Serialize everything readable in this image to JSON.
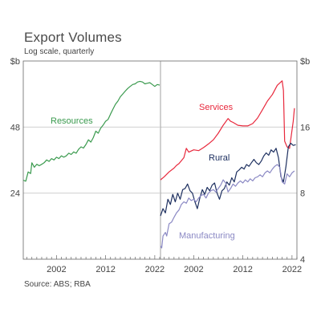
{
  "title": "Export Volumes",
  "subtitle": "Log scale, quarterly",
  "source": "Source: ABS; RBA",
  "chart_data": [
    {
      "type": "line",
      "panel": "left",
      "yscale": "log",
      "ylabel": "$b",
      "yticks": [
        24,
        48
      ],
      "ylim": [
        12,
        96
      ],
      "xlim": [
        1995.25,
        2023.0
      ],
      "xticks": [
        2002,
        2012,
        2022
      ],
      "series": [
        {
          "name": "Resources",
          "color": "#3a9a4e",
          "points": [
            [
              1995.25,
              27.5
            ],
            [
              1995.75,
              27.2
            ],
            [
              1996.25,
              30.0
            ],
            [
              1996.75,
              29.5
            ],
            [
              1997.0,
              33.0
            ],
            [
              1997.5,
              31.5
            ],
            [
              1998.0,
              32.5
            ],
            [
              1998.5,
              32.0
            ],
            [
              1999.0,
              32.5
            ],
            [
              1999.5,
              33.0
            ],
            [
              2000.0,
              34.0
            ],
            [
              2000.5,
              33.5
            ],
            [
              2001.0,
              34.5
            ],
            [
              2001.5,
              34.0
            ],
            [
              2002.0,
              35.0
            ],
            [
              2002.5,
              34.5
            ],
            [
              2003.0,
              35.5
            ],
            [
              2003.5,
              35.0
            ],
            [
              2004.0,
              35.5
            ],
            [
              2004.5,
              36.5
            ],
            [
              2005.0,
              36.0
            ],
            [
              2005.5,
              37.0
            ],
            [
              2006.0,
              36.5
            ],
            [
              2006.5,
              38.0
            ],
            [
              2007.0,
              39.0
            ],
            [
              2007.5,
              38.5
            ],
            [
              2008.0,
              40.0
            ],
            [
              2008.5,
              42.0
            ],
            [
              2009.0,
              41.0
            ],
            [
              2009.5,
              43.0
            ],
            [
              2010.0,
              46.0
            ],
            [
              2010.5,
              45.0
            ],
            [
              2011.0,
              47.5
            ],
            [
              2011.5,
              49.0
            ],
            [
              2012.0,
              51.0
            ],
            [
              2012.5,
              52.0
            ],
            [
              2013.0,
              55.0
            ],
            [
              2013.5,
              58.0
            ],
            [
              2014.0,
              61.0
            ],
            [
              2014.5,
              63.0
            ],
            [
              2015.0,
              66.0
            ],
            [
              2015.5,
              68.0
            ],
            [
              2016.0,
              70.0
            ],
            [
              2016.5,
              72.0
            ],
            [
              2017.0,
              73.5
            ],
            [
              2017.5,
              75.0
            ],
            [
              2018.0,
              75.5
            ],
            [
              2018.5,
              77.0
            ],
            [
              2019.0,
              77.5
            ],
            [
              2019.5,
              77.0
            ],
            [
              2020.0,
              75.5
            ],
            [
              2020.5,
              76.0
            ],
            [
              2021.0,
              76.5
            ],
            [
              2021.5,
              75.0
            ],
            [
              2022.0,
              73.5
            ],
            [
              2022.5,
              75.0
            ],
            [
              2023.0,
              74.5
            ]
          ]
        }
      ]
    },
    {
      "type": "line",
      "panel": "right",
      "yscale": "log",
      "ylabel": "$b",
      "yticks": [
        4,
        8,
        16
      ],
      "ylim": [
        4,
        32
      ],
      "xlim": [
        1995.25,
        2023.0
      ],
      "xticks": [
        2002,
        2012,
        2022
      ],
      "series": [
        {
          "name": "Services",
          "color": "#e8283c",
          "points": [
            [
              1995.25,
              9.2
            ],
            [
              1996.0,
              9.5
            ],
            [
              1997.0,
              10.0
            ],
            [
              1998.0,
              10.4
            ],
            [
              1998.5,
              10.7
            ],
            [
              1999.0,
              10.9
            ],
            [
              2000.0,
              11.6
            ],
            [
              2000.5,
              12.8
            ],
            [
              2001.0,
              12.3
            ],
            [
              2002.0,
              12.6
            ],
            [
              2003.0,
              12.5
            ],
            [
              2004.0,
              12.9
            ],
            [
              2005.0,
              13.4
            ],
            [
              2006.0,
              14.0
            ],
            [
              2007.0,
              15.0
            ],
            [
              2008.0,
              16.3
            ],
            [
              2009.0,
              17.5
            ],
            [
              2009.5,
              17.0
            ],
            [
              2010.0,
              16.8
            ],
            [
              2011.0,
              16.3
            ],
            [
              2012.0,
              16.2
            ],
            [
              2013.0,
              16.2
            ],
            [
              2014.0,
              16.6
            ],
            [
              2015.0,
              17.6
            ],
            [
              2016.0,
              19.2
            ],
            [
              2017.0,
              21.0
            ],
            [
              2018.0,
              22.5
            ],
            [
              2019.0,
              24.8
            ],
            [
              2020.0,
              26.0
            ],
            [
              2020.25,
              23.5
            ],
            [
              2020.5,
              13.8
            ],
            [
              2021.0,
              13.0
            ],
            [
              2021.5,
              12.8
            ],
            [
              2022.0,
              15.5
            ],
            [
              2022.25,
              17.0
            ],
            [
              2022.5,
              19.5
            ]
          ]
        },
        {
          "name": "Rural",
          "color": "#1e3060",
          "points": [
            [
              1995.25,
              6.3
            ],
            [
              1995.75,
              6.8
            ],
            [
              1996.25,
              6.5
            ],
            [
              1996.75,
              7.5
            ],
            [
              1997.25,
              7.1
            ],
            [
              1997.75,
              7.9
            ],
            [
              1998.25,
              7.3
            ],
            [
              1998.75,
              8.0
            ],
            [
              1999.25,
              7.5
            ],
            [
              1999.75,
              8.3
            ],
            [
              2000.25,
              8.4
            ],
            [
              2000.75,
              8.8
            ],
            [
              2001.25,
              8.2
            ],
            [
              2001.75,
              8.0
            ],
            [
              2002.25,
              7.3
            ],
            [
              2002.75,
              6.8
            ],
            [
              2003.25,
              7.6
            ],
            [
              2003.75,
              8.3
            ],
            [
              2004.25,
              7.9
            ],
            [
              2004.75,
              8.5
            ],
            [
              2005.25,
              8.2
            ],
            [
              2005.75,
              8.7
            ],
            [
              2006.25,
              8.9
            ],
            [
              2006.75,
              8.0
            ],
            [
              2007.25,
              7.5
            ],
            [
              2007.75,
              8.2
            ],
            [
              2008.25,
              8.4
            ],
            [
              2008.75,
              9.0
            ],
            [
              2009.25,
              8.7
            ],
            [
              2009.75,
              9.4
            ],
            [
              2010.25,
              9.0
            ],
            [
              2010.75,
              10.0
            ],
            [
              2011.25,
              10.2
            ],
            [
              2011.75,
              10.5
            ],
            [
              2012.25,
              10.3
            ],
            [
              2012.75,
              10.8
            ],
            [
              2013.25,
              10.6
            ],
            [
              2013.75,
              11.0
            ],
            [
              2014.25,
              11.4
            ],
            [
              2014.75,
              11.0
            ],
            [
              2015.25,
              10.8
            ],
            [
              2015.75,
              11.2
            ],
            [
              2016.25,
              11.8
            ],
            [
              2016.75,
              12.2
            ],
            [
              2017.25,
              11.9
            ],
            [
              2017.75,
              12.6
            ],
            [
              2018.25,
              12.3
            ],
            [
              2018.75,
              12.8
            ],
            [
              2019.25,
              11.6
            ],
            [
              2019.75,
              9.5
            ],
            [
              2020.25,
              9.0
            ],
            [
              2020.75,
              10.5
            ],
            [
              2021.25,
              13.0
            ],
            [
              2021.75,
              13.5
            ],
            [
              2022.25,
              13.2
            ],
            [
              2022.75,
              13.3
            ]
          ]
        },
        {
          "name": "Manufacturing",
          "color": "#8b89c4",
          "points": [
            [
              1995.25,
              4.6
            ],
            [
              1995.5,
              4.5
            ],
            [
              1995.75,
              5.1
            ],
            [
              1996.25,
              5.3
            ],
            [
              1996.5,
              5.1
            ],
            [
              1997.0,
              5.8
            ],
            [
              1997.5,
              5.9
            ],
            [
              1998.0,
              6.2
            ],
            [
              1998.5,
              6.5
            ],
            [
              1999.0,
              6.7
            ],
            [
              1999.5,
              7.1
            ],
            [
              2000.0,
              7.3
            ],
            [
              2000.5,
              7.2
            ],
            [
              2001.0,
              7.6
            ],
            [
              2001.5,
              7.4
            ],
            [
              2002.0,
              7.5
            ],
            [
              2002.5,
              7.3
            ],
            [
              2003.0,
              7.6
            ],
            [
              2003.5,
              7.8
            ],
            [
              2004.0,
              7.9
            ],
            [
              2004.5,
              7.6
            ],
            [
              2005.0,
              8.0
            ],
            [
              2005.5,
              8.2
            ],
            [
              2006.0,
              8.3
            ],
            [
              2006.5,
              8.1
            ],
            [
              2007.0,
              8.4
            ],
            [
              2007.5,
              8.7
            ],
            [
              2008.0,
              9.2
            ],
            [
              2008.5,
              8.9
            ],
            [
              2009.0,
              8.1
            ],
            [
              2009.5,
              8.4
            ],
            [
              2010.0,
              8.8
            ],
            [
              2010.5,
              8.6
            ],
            [
              2011.0,
              8.9
            ],
            [
              2011.5,
              9.1
            ],
            [
              2012.0,
              8.9
            ],
            [
              2012.5,
              9.2
            ],
            [
              2013.0,
              9.0
            ],
            [
              2013.5,
              9.3
            ],
            [
              2014.0,
              9.1
            ],
            [
              2014.5,
              9.4
            ],
            [
              2015.0,
              9.5
            ],
            [
              2015.5,
              9.7
            ],
            [
              2016.0,
              9.5
            ],
            [
              2016.5,
              9.9
            ],
            [
              2017.0,
              10.1
            ],
            [
              2017.5,
              9.9
            ],
            [
              2018.0,
              10.3
            ],
            [
              2018.5,
              10.6
            ],
            [
              2019.0,
              10.8
            ],
            [
              2019.5,
              10.5
            ],
            [
              2020.0,
              9.0
            ],
            [
              2020.5,
              8.8
            ],
            [
              2021.0,
              9.8
            ],
            [
              2021.5,
              9.5
            ],
            [
              2022.0,
              9.9
            ],
            [
              2022.5,
              10.1
            ]
          ]
        }
      ]
    }
  ]
}
